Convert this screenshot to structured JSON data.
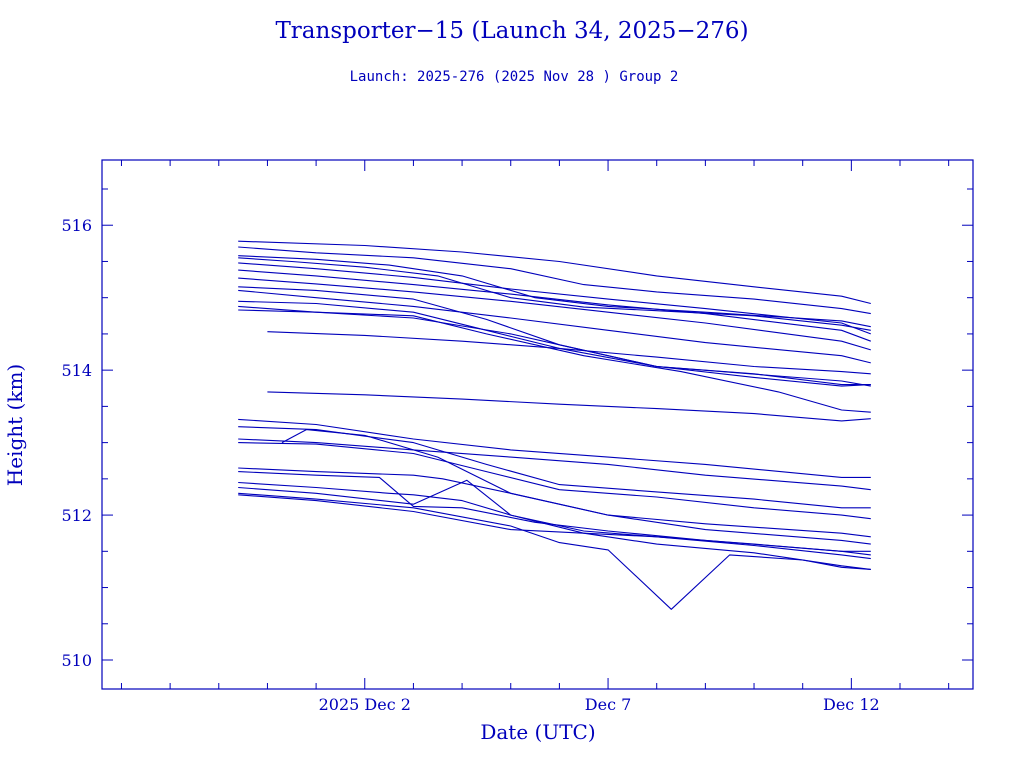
{
  "chart_data": {
    "type": "line",
    "title": "Transporter−15 (Launch 34, 2025−276)",
    "subtitle": "Launch: 2025-276  (2025 Nov 28 )  Group 2",
    "xlabel": "Date (UTC)",
    "ylabel": "Height (km)",
    "x_unit": "days since 2025 Nov 28 00:00 UTC",
    "xlim": [
      -1.4,
      16.5
    ],
    "ylim": [
      509.6,
      516.9
    ],
    "x_ticks": [
      {
        "x": 4,
        "label": "2025 Dec  2"
      },
      {
        "x": 9,
        "label": "Dec  7"
      },
      {
        "x": 14,
        "label": "Dec 12"
      }
    ],
    "y_ticks": [
      {
        "y": 510,
        "label": "510"
      },
      {
        "y": 512,
        "label": "512"
      },
      {
        "y": 514,
        "label": "514"
      },
      {
        "y": 516,
        "label": "516"
      }
    ],
    "grid": false,
    "color": "#0000bb",
    "series": [
      {
        "name": "obj-01",
        "x": [
          1.4,
          4,
          6,
          8,
          10,
          12,
          13.8,
          14.4
        ],
        "y": [
          515.78,
          515.72,
          515.63,
          515.5,
          515.3,
          515.15,
          515.02,
          514.92
        ]
      },
      {
        "name": "obj-02",
        "x": [
          1.4,
          3,
          5,
          7,
          8.5,
          10,
          12,
          13.8,
          14.4
        ],
        "y": [
          515.7,
          515.62,
          515.55,
          515.4,
          515.18,
          515.08,
          514.98,
          514.85,
          514.78
        ]
      },
      {
        "name": "obj-03",
        "x": [
          1.4,
          3,
          4.5,
          6,
          7.5,
          9,
          11,
          13.8,
          14.4
        ],
        "y": [
          515.58,
          515.53,
          515.45,
          515.3,
          515.0,
          514.88,
          514.8,
          514.68,
          514.6
        ]
      },
      {
        "name": "obj-04",
        "x": [
          1.4,
          2.5,
          4,
          5.5,
          7,
          8.5,
          10,
          12,
          13.8,
          14.4
        ],
        "y": [
          515.55,
          515.5,
          515.42,
          515.3,
          515.0,
          514.87,
          514.82,
          514.75,
          514.62,
          514.55
        ]
      },
      {
        "name": "obj-05",
        "x": [
          1.4,
          3,
          5,
          7,
          9,
          11,
          13.8,
          14.4
        ],
        "y": [
          515.48,
          515.4,
          515.28,
          515.12,
          514.98,
          514.85,
          514.65,
          514.5
        ]
      },
      {
        "name": "obj-06",
        "x": [
          1.4,
          3,
          5,
          7,
          9,
          11,
          13.8,
          14.4
        ],
        "y": [
          515.38,
          515.3,
          515.18,
          515.05,
          514.9,
          514.78,
          514.55,
          514.4
        ]
      },
      {
        "name": "obj-07",
        "x": [
          1.4,
          3,
          5,
          7,
          9,
          11,
          13.8,
          14.4
        ],
        "y": [
          515.27,
          515.19,
          515.08,
          514.95,
          514.8,
          514.65,
          514.4,
          514.28
        ]
      },
      {
        "name": "obj-08",
        "x": [
          1.4,
          3,
          5,
          6.5,
          8,
          10,
          13.8,
          14.4
        ],
        "y": [
          515.15,
          515.1,
          514.98,
          514.7,
          514.35,
          514.05,
          513.85,
          513.78
        ]
      },
      {
        "name": "obj-09",
        "x": [
          1.4,
          3,
          5,
          7,
          9,
          11,
          13.8,
          14.4
        ],
        "y": [
          515.1,
          515.0,
          514.88,
          514.72,
          514.55,
          514.38,
          514.2,
          514.1
        ]
      },
      {
        "name": "obj-10",
        "x": [
          1.4,
          3,
          5,
          6.5,
          8,
          10,
          12,
          13.8,
          14.4
        ],
        "y": [
          514.95,
          514.92,
          514.8,
          514.55,
          514.3,
          514.05,
          513.9,
          513.78,
          513.8
        ]
      },
      {
        "name": "obj-11",
        "x": [
          1.4,
          3,
          5,
          7,
          8,
          10,
          12,
          13.8,
          14.4
        ],
        "y": [
          514.88,
          514.8,
          514.72,
          514.5,
          514.35,
          514.05,
          513.95,
          513.8,
          513.8
        ]
      },
      {
        "name": "obj-12",
        "x": [
          1.4,
          3,
          5,
          6.5,
          8.5,
          10.5,
          12.5,
          13.8,
          14.4
        ],
        "y": [
          514.83,
          514.8,
          514.75,
          514.5,
          514.2,
          513.98,
          513.7,
          513.45,
          513.42
        ]
      },
      {
        "name": "obj-13",
        "x": [
          2,
          4,
          6,
          8,
          10,
          12,
          13.8,
          14.4
        ],
        "y": [
          514.53,
          514.48,
          514.4,
          514.3,
          514.18,
          514.05,
          513.98,
          513.95
        ]
      },
      {
        "name": "obj-14",
        "x": [
          2,
          4,
          6,
          8,
          10,
          12,
          13.8,
          14.4
        ],
        "y": [
          513.7,
          513.66,
          513.6,
          513.53,
          513.47,
          513.4,
          513.3,
          513.33
        ]
      },
      {
        "name": "obj-15",
        "x": [
          1.4,
          3,
          5,
          7,
          9,
          11,
          13.8,
          14.4
        ],
        "y": [
          513.32,
          513.25,
          513.05,
          512.9,
          512.8,
          512.7,
          512.52,
          512.52
        ]
      },
      {
        "name": "obj-16",
        "x": [
          1.4,
          3,
          5,
          6.5,
          8,
          10,
          12,
          13.8,
          14.4
        ],
        "y": [
          513.22,
          513.18,
          513.0,
          512.7,
          512.42,
          512.32,
          512.22,
          512.1,
          512.1
        ]
      },
      {
        "name": "obj-17",
        "x": [
          1.4,
          3,
          5,
          7,
          9,
          11,
          13.8,
          14.4
        ],
        "y": [
          513.05,
          513.0,
          512.9,
          512.8,
          512.7,
          512.55,
          512.4,
          512.35
        ]
      },
      {
        "name": "obj-18",
        "x": [
          1.4,
          3,
          5,
          6.5,
          8,
          10,
          12,
          13.8,
          14.4
        ],
        "y": [
          513.0,
          512.98,
          512.85,
          512.6,
          512.35,
          512.25,
          512.1,
          512.0,
          511.95
        ]
      },
      {
        "name": "obj-19",
        "x": [
          2.3,
          2.8,
          4,
          5.5,
          7,
          9,
          11,
          13.8,
          14.4
        ],
        "y": [
          513.0,
          513.18,
          513.1,
          512.8,
          512.3,
          512.0,
          511.88,
          511.75,
          511.7
        ]
      },
      {
        "name": "obj-20",
        "x": [
          1.4,
          3,
          5,
          5.6,
          7,
          9,
          11,
          13.8,
          14.4
        ],
        "y": [
          512.65,
          512.6,
          512.55,
          512.5,
          512.3,
          512.0,
          511.8,
          511.65,
          511.6
        ]
      },
      {
        "name": "obj-21",
        "x": [
          1.4,
          3,
          4.3,
          5,
          6,
          7.5,
          9,
          11,
          13.8,
          14.4
        ],
        "y": [
          512.6,
          512.55,
          512.52,
          512.12,
          512.1,
          511.9,
          511.78,
          511.65,
          511.5,
          511.45
        ]
      },
      {
        "name": "obj-22",
        "x": [
          1.4,
          3,
          4.5,
          5,
          6,
          7,
          8.5,
          10,
          12,
          13.8,
          14.4
        ],
        "y": [
          512.45,
          512.38,
          512.3,
          512.28,
          512.2,
          512.0,
          511.78,
          511.7,
          511.58,
          511.45,
          511.4
        ]
      },
      {
        "name": "obj-23",
        "x": [
          1.4,
          3,
          5,
          6.1,
          7,
          8.5,
          10,
          12,
          13.8,
          14.4
        ],
        "y": [
          512.38,
          512.3,
          512.15,
          512.48,
          512.0,
          511.75,
          511.6,
          511.48,
          511.3,
          511.25
        ]
      },
      {
        "name": "obj-24",
        "x": [
          1.4,
          3,
          5,
          7,
          8,
          9,
          10.3,
          11.5,
          13,
          13.8,
          14.4
        ],
        "y": [
          512.3,
          512.22,
          512.1,
          511.85,
          511.62,
          511.52,
          510.7,
          511.45,
          511.38,
          511.28,
          511.25
        ]
      },
      {
        "name": "obj-25",
        "x": [
          1.4,
          3,
          5,
          7,
          8.5,
          10,
          12,
          13.8,
          14.4
        ],
        "y": [
          512.28,
          512.2,
          512.05,
          511.8,
          511.75,
          511.7,
          511.6,
          511.5,
          511.5
        ]
      }
    ]
  }
}
